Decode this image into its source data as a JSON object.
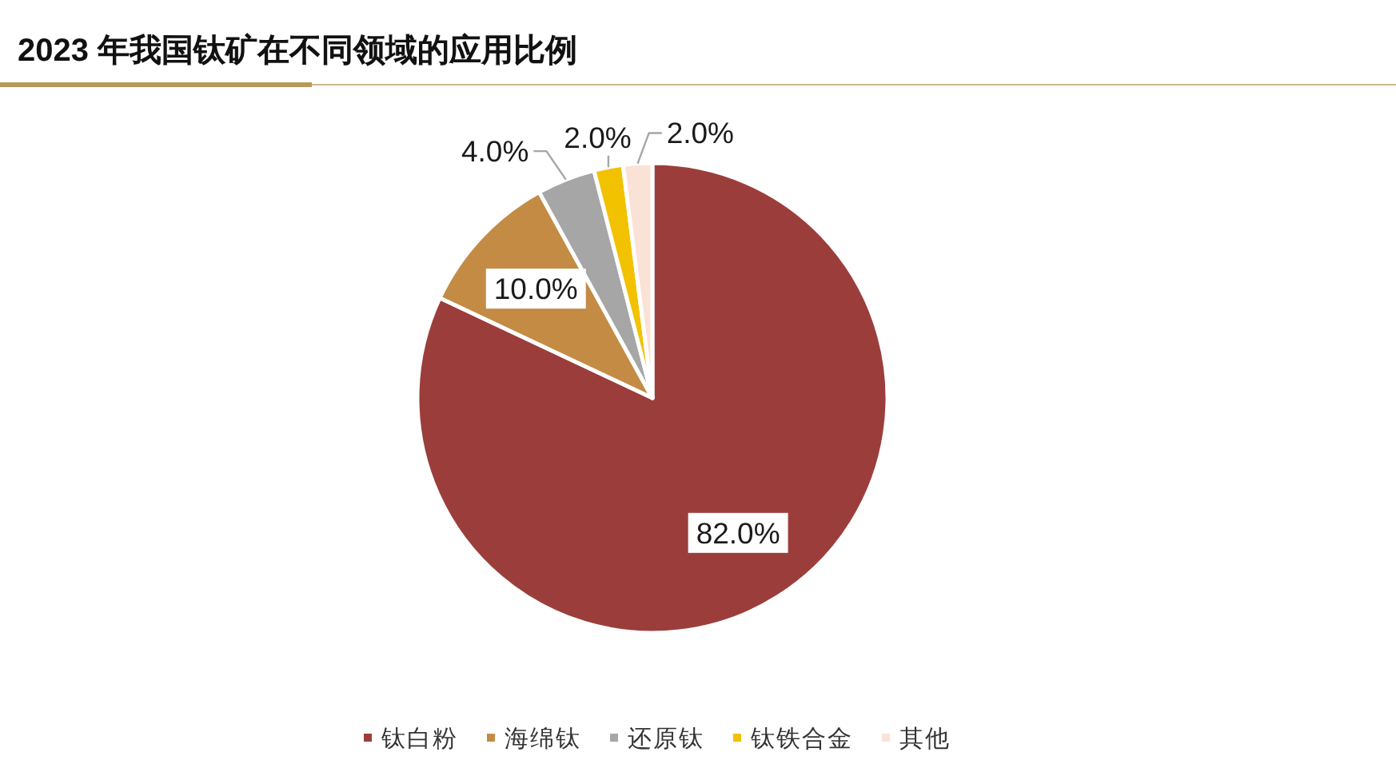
{
  "chart_data": {
    "type": "pie",
    "title": "2023 年我国钛矿在不同领域的应用比例",
    "categories": [
      "钛白粉",
      "海绵钛",
      "还原钛",
      "钛铁合金",
      "其他"
    ],
    "values": [
      82,
      10,
      4,
      2,
      2
    ],
    "colors": [
      "#9b3e3b",
      "#c48b45",
      "#a6a6a6",
      "#f2c200",
      "#fbe2d6"
    ],
    "value_labels": [
      "82.0%",
      "10.0%",
      "4.0%",
      "2.0%",
      "2.0%"
    ],
    "legend": "bottom"
  }
}
